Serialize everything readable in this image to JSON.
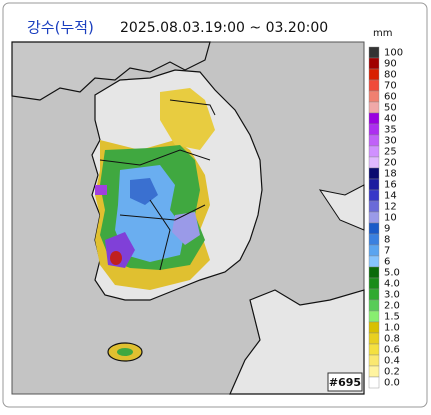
{
  "header": {
    "title": "강수(누적)",
    "period": "2025.08.03.19:00 ~ 03.20:00",
    "unit": "mm"
  },
  "legend": [
    {
      "label": "100",
      "color": "#333333"
    },
    {
      "label": "90",
      "color": "#a00000"
    },
    {
      "label": "80",
      "color": "#d82000"
    },
    {
      "label": "70",
      "color": "#f04a3a"
    },
    {
      "label": "60",
      "color": "#f08070"
    },
    {
      "label": "50",
      "color": "#f0a8a8"
    },
    {
      "label": "40",
      "color": "#9a00e0"
    },
    {
      "label": "35",
      "color": "#ad2ef0"
    },
    {
      "label": "30",
      "color": "#c060f8"
    },
    {
      "label": "25",
      "color": "#d090ff"
    },
    {
      "label": "20",
      "color": "#e0b8ff"
    },
    {
      "label": "18",
      "color": "#0a0a70"
    },
    {
      "label": "16",
      "color": "#1c1ca0"
    },
    {
      "label": "14",
      "color": "#3838c8"
    },
    {
      "label": "12",
      "color": "#6a6ad8"
    },
    {
      "label": "10",
      "color": "#9a9ae8"
    },
    {
      "label": "9",
      "color": "#1a5ac8"
    },
    {
      "label": "8",
      "color": "#3a80e0"
    },
    {
      "label": "7",
      "color": "#5aa4f0"
    },
    {
      "label": "6",
      "color": "#86c4ff"
    },
    {
      "label": "5.0",
      "color": "#0a6a0a"
    },
    {
      "label": "4.0",
      "color": "#1a8c1a"
    },
    {
      "label": "3.0",
      "color": "#30aa30"
    },
    {
      "label": "2.0",
      "color": "#58cc58"
    },
    {
      "label": "1.5",
      "color": "#88ee70"
    },
    {
      "label": "1.0",
      "color": "#d8c000"
    },
    {
      "label": "0.8",
      "color": "#e8d020"
    },
    {
      "label": "0.6",
      "color": "#f4e040"
    },
    {
      "label": "0.4",
      "color": "#fae870"
    },
    {
      "label": "0.2",
      "color": "#fff4a0"
    },
    {
      "label": "0.0",
      "color": "#ffffff"
    }
  ],
  "frame_id": "#695"
}
